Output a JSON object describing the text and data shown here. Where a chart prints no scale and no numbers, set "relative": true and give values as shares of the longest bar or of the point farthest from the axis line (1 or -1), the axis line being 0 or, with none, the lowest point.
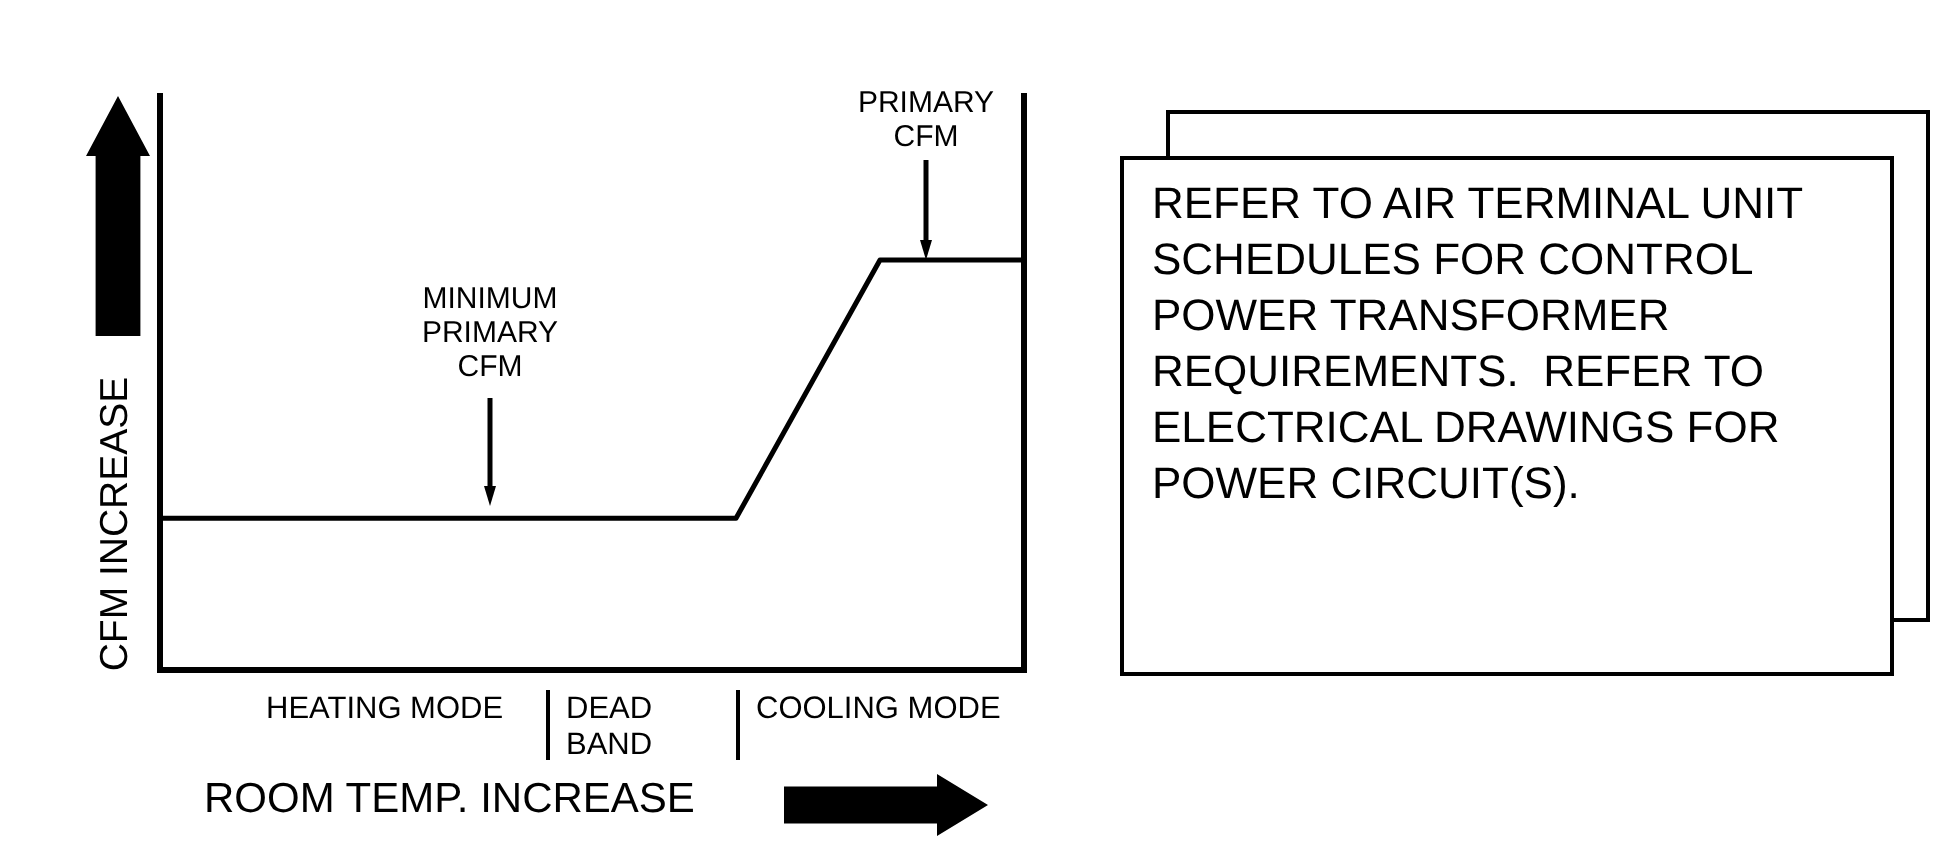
{
  "chart_data": [
    {
      "type": "line",
      "xlabel": "ROOM TEMP. INCREASE",
      "ylabel": "CFM INCREASE",
      "relative": true,
      "categories": [
        null,
        null,
        null,
        null,
        null,
        null,
        null
      ],
      "series": [
        {
          "color": "#000000",
          "values": [
            0.37,
            0.37,
            0.37,
            0.37,
            0.37,
            1,
            1
          ]
        }
      ],
      "annotations": [
        "MINIMUM PRIMARY CFM",
        "PRIMARY CFM",
        "HEATING MODE",
        "DEAD BAND",
        "COOLING MODE"
      ],
      "marker": "none"
    },
    {
      "type": "other",
      "annotations": [
        "REFER TO AIR TERMINAL UNIT SCHEDULES FOR CONTROL POWER TRANSFORMER REQUIREMENTS.  REFER TO ELECTRICAL DRAWINGS FOR POWER CIRCUIT(S)."
      ]
    }
  ]
}
